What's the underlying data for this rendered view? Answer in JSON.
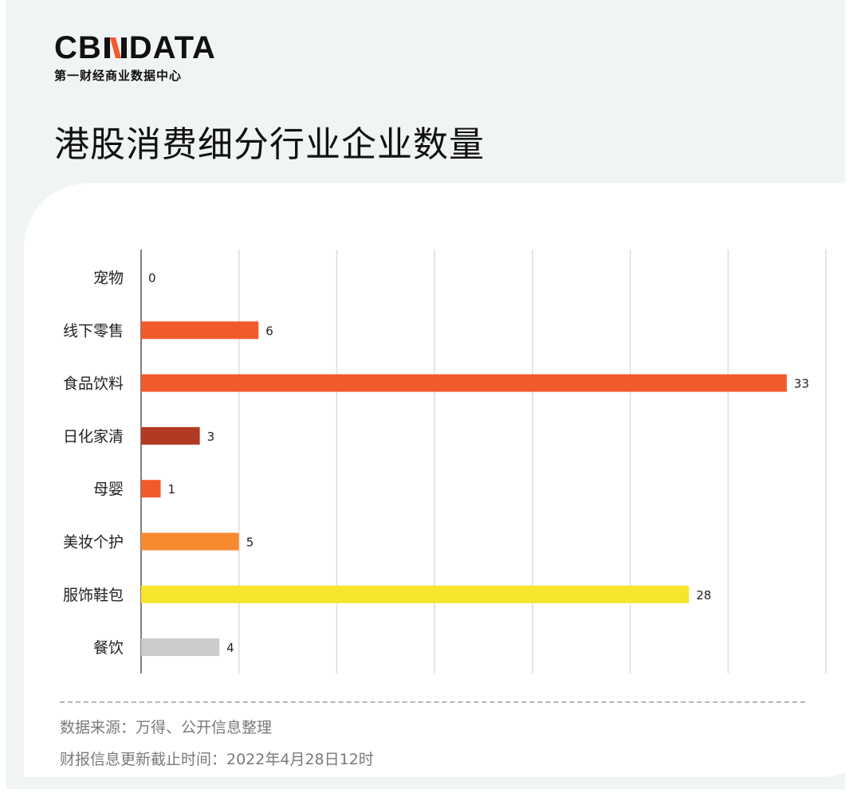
{
  "brand": {
    "logo_left": "CB",
    "logo_right": "DATA",
    "subtitle": "第一财经商业数据中心"
  },
  "title": "港股消费细分行业企业数量",
  "chart_data": {
    "type": "bar",
    "orientation": "horizontal",
    "categories": [
      "宠物",
      "线下零售",
      "食品饮料",
      "日化家清",
      "母婴",
      "美妆个护",
      "服饰鞋包",
      "餐饮"
    ],
    "values": [
      0,
      6,
      33,
      3,
      1,
      5,
      28,
      4
    ],
    "colors": [
      "#f15a2b",
      "#f15a2b",
      "#f15a2b",
      "#b23a22",
      "#f15a2b",
      "#f78a2f",
      "#f5e52b",
      "#c9ccc9"
    ],
    "xlim": [
      0,
      35
    ],
    "grid": true,
    "legend": "none",
    "data_labels": true
  },
  "source_note": "数据来源：万得、公开信息整理",
  "cutoff_note": "财报信息更新截止时间：2022年4月28日12时"
}
